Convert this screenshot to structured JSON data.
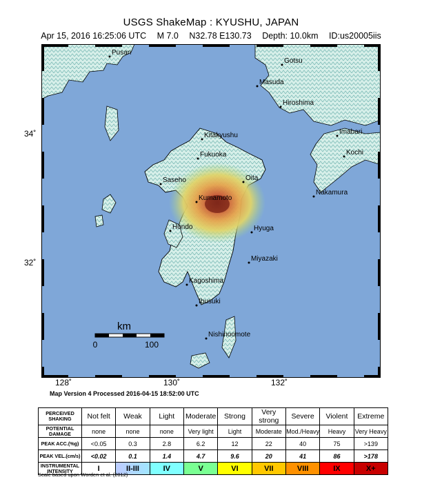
{
  "header": {
    "title": "USGS ShakeMap : KYUSHU, JAPAN",
    "date": "Apr 15, 2016 16:25:06 UTC",
    "magnitude": "M 7.0",
    "location": "N32.78 E130.73",
    "depth": "Depth: 10.0km",
    "event_id": "ID:us20005iis"
  },
  "map": {
    "lat_labels": [
      "34˚",
      "32˚"
    ],
    "lon_labels": [
      "128˚",
      "130˚",
      "132˚"
    ],
    "scale_bar": {
      "unit": "km",
      "start": "0",
      "end": "100"
    },
    "colors": {
      "ocean": "#7fa7d8",
      "land": "#d9eeec",
      "green": "#8fd08a",
      "yellow": "#e6dc6a",
      "orange": "#e7a04a",
      "red": "#b94a2e",
      "border": "#000000"
    },
    "cities": [
      "Pusan",
      "Gotsu",
      "Masuda",
      "Hiroshima",
      "Kitakyushu",
      "Imabari",
      "Fukuoka",
      "Kochi",
      "Oita",
      "Saseho",
      "Nakamura",
      "Kumamoto",
      "Hondo",
      "Hyuga",
      "Miyazaki",
      "Kagoshima",
      "Ibusuki",
      "Nishinoomote"
    ]
  },
  "version_line": "Map Version 4 Processed 2016-04-15 18:52:00 UTC",
  "legend": {
    "rows": [
      {
        "label": "PERCEIVED SHAKING",
        "values": [
          "Not felt",
          "Weak",
          "Light",
          "Moderate",
          "Strong",
          "Very strong",
          "Severe",
          "Violent",
          "Extreme"
        ]
      },
      {
        "label": "POTENTIAL DAMAGE",
        "values": [
          "none",
          "none",
          "none",
          "Very light",
          "Light",
          "Moderate",
          "Mod./Heavy",
          "Heavy",
          "Very Heavy"
        ]
      },
      {
        "label": "PEAK ACC.(%g)",
        "values": [
          "<0.05",
          "0.3",
          "2.8",
          "6.2",
          "12",
          "22",
          "40",
          "75",
          ">139"
        ]
      },
      {
        "label": "PEAK VEL.(cm/s)",
        "values": [
          "<0.02",
          "0.1",
          "1.4",
          "4.7",
          "9.6",
          "20",
          "41",
          "86",
          ">178"
        ]
      },
      {
        "label": "INSTRUMENTAL INTENSITY",
        "values": [
          "I",
          "II-III",
          "IV",
          "V",
          "VI",
          "VII",
          "VIII",
          "IX",
          "X+"
        ]
      }
    ],
    "intensity_colors": [
      "#ffffff",
      "#bfccff",
      "#a0e6ff",
      "#80ffff",
      "#7aff93",
      "#ffff00",
      "#ffc800",
      "#ff9100",
      "#ff0000",
      "#c80000"
    ]
  },
  "scale_note": "Scale based upon Worden et al. (2012)"
}
